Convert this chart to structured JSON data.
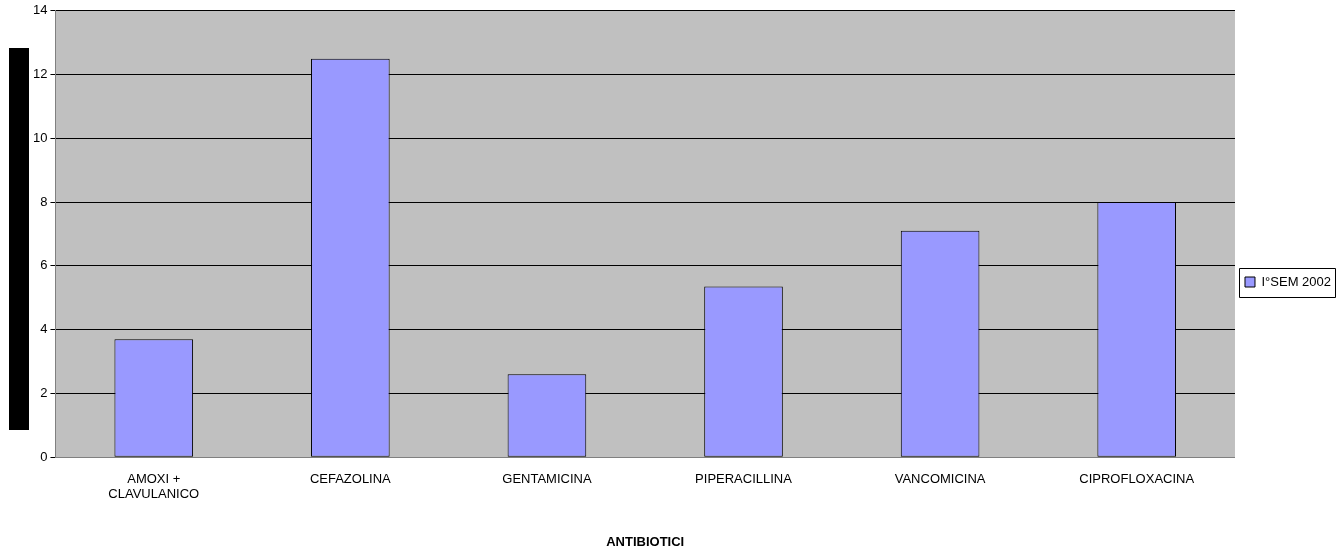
{
  "chart_data": {
    "type": "bar",
    "xlabel": "ANTIBIOTICI",
    "categories": [
      "AMOXI + CLAVULANICO",
      "CEFAZOLINA",
      "GENTAMICINA",
      "PIPERACILLINA",
      "VANCOMICINA",
      "CIPROFLOXACINA"
    ],
    "series": [
      {
        "name": "I°SEM 2002",
        "color": "#9999ff",
        "values": [
          3.7,
          12.5,
          2.6,
          5.35,
          7.1,
          8.0
        ]
      }
    ],
    "ylim": [
      0,
      14
    ],
    "yticks": [
      0,
      2,
      4,
      6,
      8,
      10,
      12,
      14
    ],
    "grid": "y",
    "legend": "right"
  }
}
